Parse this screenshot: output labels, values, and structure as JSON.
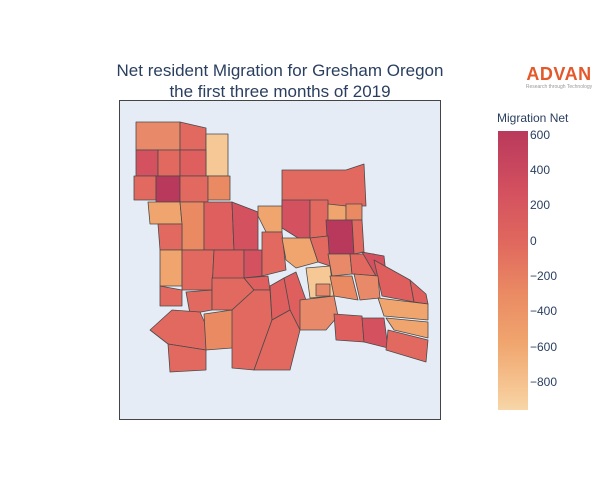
{
  "title": {
    "line1": "Net resident Migration for Gresham Oregon",
    "line2": "the first three months of 2019"
  },
  "logo": {
    "name": "ADVAN",
    "tagline": "Research through Technology"
  },
  "colorbar": {
    "title": "Migration Net",
    "range": [
      -950,
      620
    ],
    "ticks": [
      "600",
      "400",
      "200",
      "0",
      "−200",
      "−400",
      "−600",
      "−800"
    ],
    "tick_values": [
      600,
      400,
      200,
      0,
      -200,
      -400,
      -600,
      -800
    ]
  },
  "colors": {
    "plot_background": "#e5ecf6",
    "border": "#4a4a4a",
    "title": "#2a3f5f",
    "logo": "#e4582a"
  }
}
